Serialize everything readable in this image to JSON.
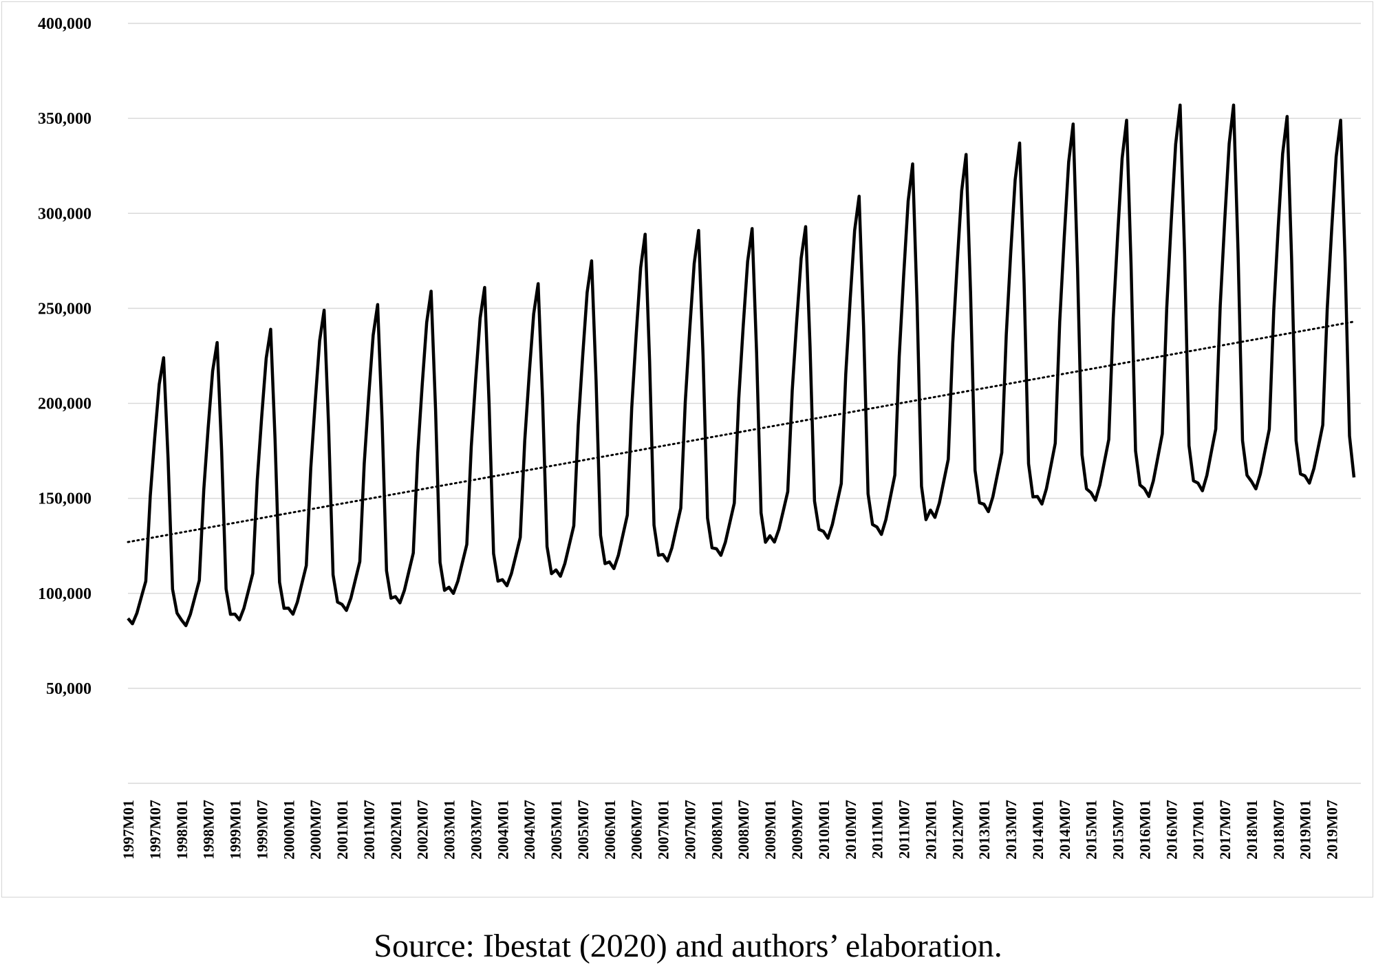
{
  "caption": "Source: Ibestat (2020) and authors’ elaboration.",
  "chart_data": {
    "type": "line",
    "title": "",
    "xlabel": "",
    "ylabel": "",
    "ylim": [
      0,
      400000
    ],
    "yticks": [
      50000,
      100000,
      150000,
      200000,
      250000,
      300000,
      350000,
      400000
    ],
    "ytick_labels": [
      "50,000",
      "100,000",
      "150,000",
      "200,000",
      "250,000",
      "300,000",
      "350,000",
      "400,000"
    ],
    "x_start": "1997M01",
    "x_end": "2019M12",
    "xtick_labels": [
      "1997M01",
      "1997M07",
      "1998M01",
      "1998M07",
      "1999M01",
      "1999M07",
      "2000M01",
      "2000M07",
      "2001M01",
      "2001M07",
      "2002M01",
      "2002M07",
      "2003M01",
      "2003M07",
      "2004M01",
      "2004M07",
      "2005M01",
      "2005M07",
      "2006M01",
      "2006M07",
      "2007M01",
      "2007M07",
      "2008M01",
      "2008M07",
      "2009M01",
      "2009M07",
      "2010M01",
      "2010M07",
      "2011M01",
      "2011M07",
      "2012M01",
      "2012M07",
      "2013M01",
      "2013M07",
      "2014M01",
      "2014M07",
      "2015M01",
      "2015M07",
      "2016M01",
      "2016M07",
      "2017M01",
      "2017M07",
      "2018M01",
      "2018M07",
      "2019M01",
      "2019M07"
    ],
    "grid": true,
    "legend": "none",
    "colors": {
      "series": "#000000",
      "grid": "#d9d9d9"
    },
    "seasonal_shape": [
      0.02,
      0.0,
      0.04,
      0.1,
      0.16,
      0.48,
      0.7,
      0.9,
      1.0,
      0.62,
      0.13,
      0.04
    ],
    "series": [
      {
        "style": "solid",
        "annual_peaks": [
          224000,
          232000,
          239000,
          249000,
          252000,
          259000,
          261000,
          263000,
          275000,
          289000,
          291000,
          292000,
          293000,
          309000,
          326000,
          331000,
          337000,
          347000,
          349000,
          357000,
          357000,
          351000,
          349000
        ],
        "annual_troughs": [
          84000,
          83000,
          86000,
          89000,
          91000,
          95000,
          100000,
          104000,
          109000,
          113000,
          117000,
          120000,
          127000,
          129000,
          131000,
          140000,
          143000,
          147000,
          149000,
          151000,
          154000,
          155000,
          158000
        ],
        "dec_2019": 161000
      },
      {
        "style": "dotted",
        "type": "linear-trend",
        "start": 127000,
        "end": 243000
      }
    ]
  }
}
